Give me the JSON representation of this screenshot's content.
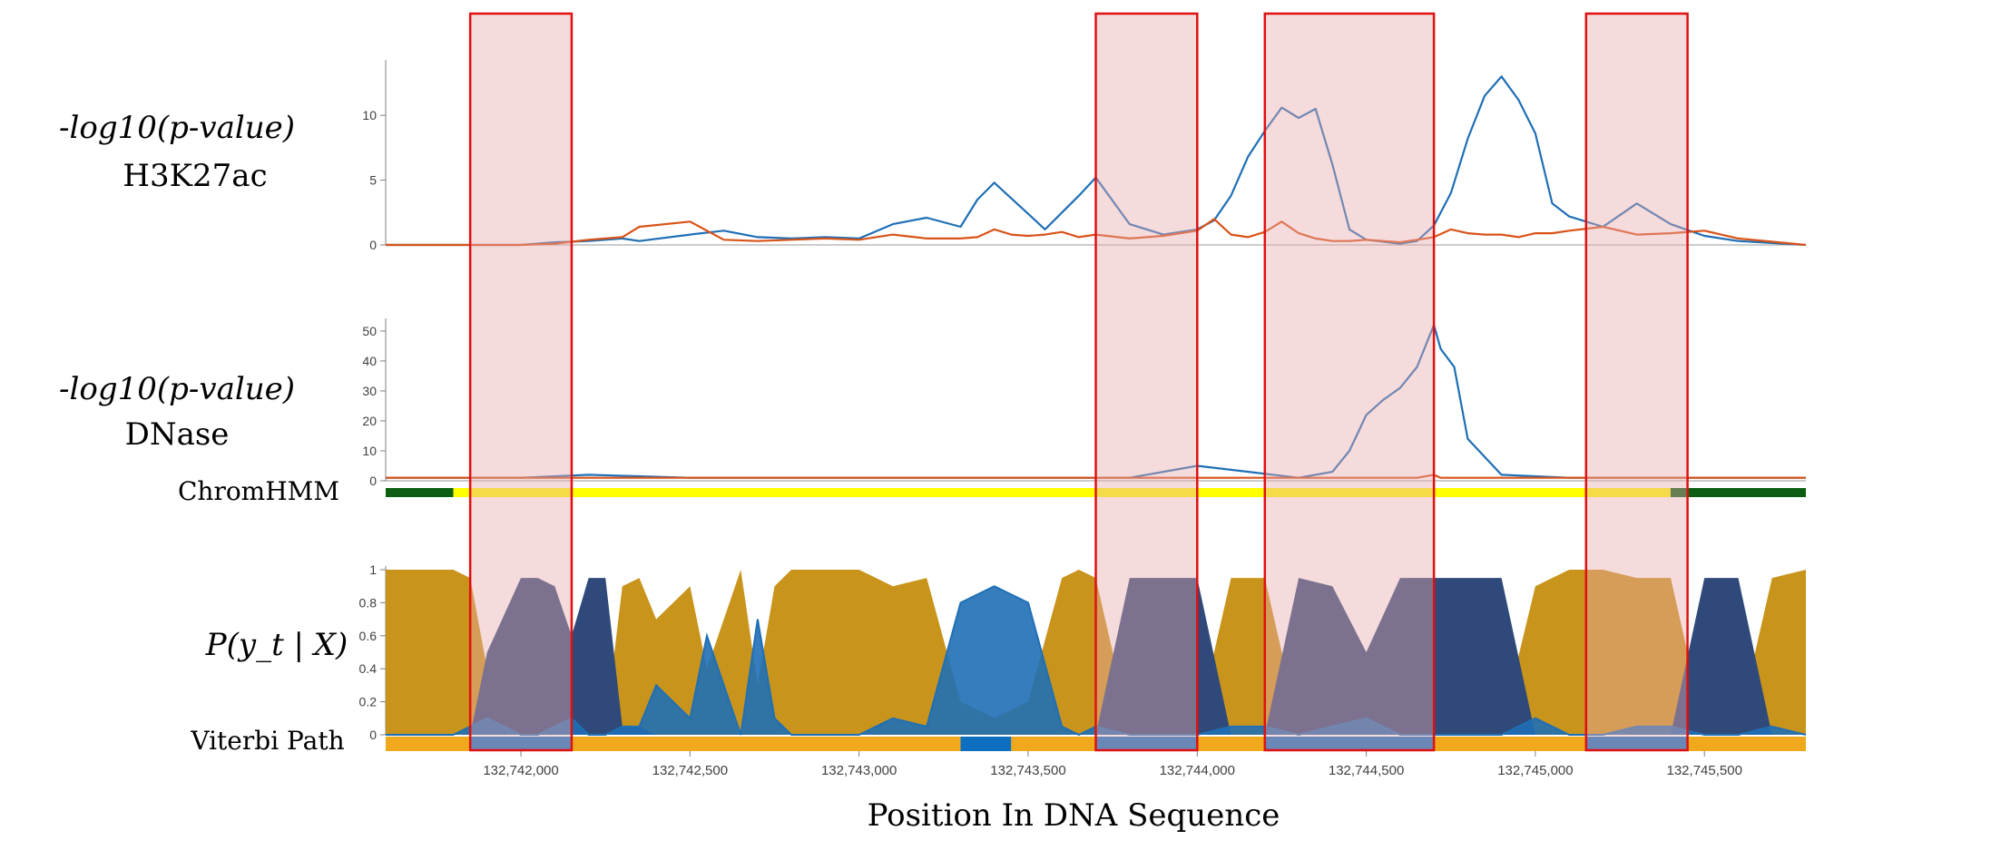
{
  "chart_data": [
    {
      "type": "line",
      "panel": "h3k27ac",
      "ylabel": "-log10(p-value)\nH3K27ac",
      "ylim": [
        0,
        14
      ],
      "yticks": [
        0,
        5,
        10
      ],
      "x": [
        132741600,
        132741800,
        132742000,
        132742100,
        132742200,
        132742300,
        132742350,
        132742500,
        132742600,
        132742700,
        132742800,
        132742900,
        132743000,
        132743100,
        132743200,
        132743300,
        132743350,
        132743400,
        132743450,
        132743500,
        132743550,
        132743600,
        132743650,
        132743700,
        132743800,
        132743900,
        132744000,
        132744050,
        132744100,
        132744150,
        132744200,
        132744250,
        132744300,
        132744350,
        132744400,
        132744450,
        132744500,
        132744600,
        132744650,
        132744700,
        132744750,
        132744800,
        132744850,
        132744900,
        132744950,
        132745000,
        132745050,
        132745100,
        132745200,
        132745300,
        132745400,
        132745500,
        132745600,
        132745800
      ],
      "series": [
        {
          "color": "#1f6fb5",
          "values": [
            0,
            0,
            0,
            0.2,
            0.3,
            0.5,
            0.3,
            0.8,
            1.1,
            0.6,
            0.5,
            0.6,
            0.5,
            1.6,
            2.1,
            1.4,
            3.5,
            4.8,
            3.6,
            2.4,
            1.2,
            2.5,
            3.8,
            5.2,
            1.6,
            0.8,
            1.2,
            1.9,
            3.8,
            6.8,
            8.8,
            10.6,
            9.8,
            10.5,
            6.2,
            1.2,
            0.4,
            0.1,
            0.3,
            1.5,
            4.0,
            8.2,
            11.5,
            13.0,
            11.2,
            8.6,
            3.2,
            2.2,
            1.4,
            3.2,
            1.6,
            0.7,
            0.3,
            0
          ]
        },
        {
          "color": "#d95319",
          "values": [
            0,
            0,
            0,
            0.1,
            0.4,
            0.6,
            1.4,
            1.8,
            0.4,
            0.3,
            0.4,
            0.5,
            0.4,
            0.8,
            0.5,
            0.5,
            0.6,
            1.2,
            0.8,
            0.7,
            0.8,
            1.0,
            0.6,
            0.8,
            0.5,
            0.7,
            1.1,
            2.0,
            0.8,
            0.6,
            1.0,
            1.8,
            0.9,
            0.5,
            0.3,
            0.3,
            0.4,
            0.2,
            0.4,
            0.6,
            1.2,
            0.9,
            0.8,
            0.8,
            0.6,
            0.9,
            0.9,
            1.1,
            1.4,
            0.8,
            0.9,
            1.1,
            0.5,
            0
          ]
        }
      ]
    },
    {
      "type": "line",
      "panel": "dnase",
      "ylabel": "-log10(p-value)\nDNase",
      "ylim": [
        0,
        53
      ],
      "yticks": [
        0,
        10,
        20,
        30,
        40,
        50
      ],
      "x": [
        132741600,
        132742000,
        132742200,
        132742500,
        132742800,
        132743000,
        132743300,
        132743600,
        132743800,
        132744000,
        132744300,
        132744400,
        132744450,
        132744500,
        132744550,
        132744600,
        132744650,
        132744700,
        132744720,
        132744760,
        132744800,
        132744900,
        132745100,
        132745400,
        132745800
      ],
      "series": [
        {
          "color": "#1f6fb5",
          "values": [
            1,
            1,
            2,
            1,
            1,
            1,
            1,
            1,
            1,
            5,
            1,
            3,
            10,
            22,
            27,
            31,
            38,
            52,
            44,
            38,
            14,
            2,
            1,
            1,
            1
          ]
        },
        {
          "color": "#d95319",
          "values": [
            1,
            1,
            1,
            1,
            1,
            1,
            1,
            1,
            1,
            1,
            1,
            1,
            1,
            1,
            1,
            1,
            1,
            2,
            1,
            1,
            1,
            1,
            1,
            1,
            1
          ]
        }
      ]
    },
    {
      "type": "area",
      "panel": "posterior",
      "ylabel": "P(y_t | X)",
      "ylim": [
        0,
        1
      ],
      "yticks": [
        0,
        0.2,
        0.4,
        0.6,
        0.8,
        1
      ],
      "x": [
        132741600,
        132741800,
        132741850,
        132741900,
        132742000,
        132742050,
        132742100,
        132742150,
        132742200,
        132742250,
        132742300,
        132742350,
        132742400,
        132742500,
        132742550,
        132742650,
        132742700,
        132742750,
        132742800,
        132742900,
        132743000,
        132743100,
        132743200,
        132743300,
        132743400,
        132743500,
        132743600,
        132743650,
        132743700,
        132743800,
        132743900,
        132744000,
        132744100,
        132744200,
        132744300,
        132744400,
        132744500,
        132744600,
        132744700,
        132744800,
        132744900,
        132745000,
        132745100,
        132745200,
        132745300,
        132745400,
        132745500,
        132745600,
        132745700,
        132745800
      ],
      "series": [
        {
          "name": "",
          "color": "#c9941c",
          "values": [
            1,
            1,
            0.95,
            0.4,
            0.05,
            0.05,
            0.05,
            0.3,
            0.05,
            0.05,
            0.9,
            0.95,
            0.7,
            0.9,
            0.4,
            1,
            0.3,
            0.9,
            1,
            1,
            1,
            0.9,
            0.95,
            0.2,
            0.1,
            0.2,
            0.95,
            1,
            0.95,
            0.05,
            0.05,
            0.05,
            0.95,
            0.95,
            0.05,
            0.05,
            0.4,
            0.05,
            0.05,
            0.05,
            0.05,
            0.9,
            1,
            1,
            0.95,
            0.95,
            0.05,
            0.05,
            0.95,
            1
          ]
        },
        {
          "name": "",
          "color": "#2f4a7a",
          "values": [
            0,
            0,
            0,
            0.5,
            0.95,
            0.95,
            0.9,
            0.6,
            0.95,
            0.95,
            0.05,
            0.05,
            0,
            0,
            0,
            0,
            0,
            0,
            0,
            0,
            0,
            0,
            0,
            0,
            0,
            0,
            0,
            0,
            0,
            0.95,
            0.95,
            0.95,
            0,
            0,
            0.95,
            0.9,
            0.5,
            0.95,
            0.95,
            0.95,
            0.95,
            0,
            0,
            0,
            0,
            0,
            0.95,
            0.95,
            0,
            0
          ]
        },
        {
          "name": "",
          "color": "#1f6fb5",
          "values": [
            0,
            0,
            0.05,
            0.1,
            0,
            0,
            0.05,
            0.1,
            0,
            0,
            0.05,
            0.05,
            0.3,
            0.1,
            0.6,
            0,
            0.7,
            0.1,
            0,
            0,
            0,
            0.1,
            0.05,
            0.8,
            0.9,
            0.8,
            0.05,
            0,
            0.05,
            0,
            0,
            0,
            0.05,
            0.05,
            0,
            0.05,
            0.1,
            0,
            0,
            0,
            0,
            0.1,
            0,
            0,
            0.05,
            0.05,
            0,
            0,
            0.05,
            0
          ]
        }
      ],
      "xtick_labels": [
        "132,742,000",
        "132,742,500",
        "132,743,000",
        "132,743,500",
        "132,744,000",
        "132,744,500",
        "132,745,000",
        "132,745,500"
      ],
      "xticks": [
        132742000,
        132742500,
        132743000,
        132743500,
        132744000,
        132744500,
        132745000,
        132745500
      ],
      "xlim": [
        132741600,
        132745800
      ],
      "xlabel": "Position In DNA Sequence"
    }
  ],
  "tracks": {
    "chromhmm": {
      "label": "ChromHMM",
      "segments": [
        {
          "start": 132741600,
          "end": 132741800,
          "color": "#0b5e12"
        },
        {
          "start": 132741800,
          "end": 132745400,
          "color": "#ffff00"
        },
        {
          "start": 132745400,
          "end": 132745800,
          "color": "#0b5e12"
        }
      ]
    },
    "viterbi": {
      "label": "Viterbi Path",
      "segments": [
        {
          "start": 132741600,
          "end": 132741850,
          "color": "#f0a81c"
        },
        {
          "start": 132741850,
          "end": 132742150,
          "color": "#0e6fc0"
        },
        {
          "start": 132742150,
          "end": 132743300,
          "color": "#f0a81c"
        },
        {
          "start": 132743300,
          "end": 132743450,
          "color": "#0e6fc0"
        },
        {
          "start": 132743450,
          "end": 132743700,
          "color": "#f0a81c"
        },
        {
          "start": 132743700,
          "end": 132744000,
          "color": "#0e6fc0"
        },
        {
          "start": 132744000,
          "end": 132744200,
          "color": "#f0a81c"
        },
        {
          "start": 132744200,
          "end": 132744700,
          "color": "#0e6fc0"
        },
        {
          "start": 132744700,
          "end": 132745150,
          "color": "#f0a81c"
        },
        {
          "start": 132745150,
          "end": 132745450,
          "color": "#0e6fc0"
        },
        {
          "start": 132745450,
          "end": 132745800,
          "color": "#f0a81c"
        }
      ]
    }
  },
  "highlights": [
    {
      "start": 132741850,
      "end": 132742150
    },
    {
      "start": 132743700,
      "end": 132744000
    },
    {
      "start": 132744200,
      "end": 132744700
    },
    {
      "start": 132745150,
      "end": 132745450
    }
  ],
  "labels": {
    "h3k27ac_line1": "-log10(p-value)",
    "h3k27ac_line2": "H3K27ac",
    "dnase_line1": "-log10(p-value)",
    "dnase_line2": "DNase",
    "chromhmm": "ChromHMM",
    "posterior": "P(y_t | X)",
    "viterbi": "Viterbi Path",
    "xlabel": "Position In DNA Sequence"
  },
  "colors": {
    "highlight_fill": "#e8a9ab",
    "highlight_border": "#e01010",
    "axis": "#808080"
  }
}
